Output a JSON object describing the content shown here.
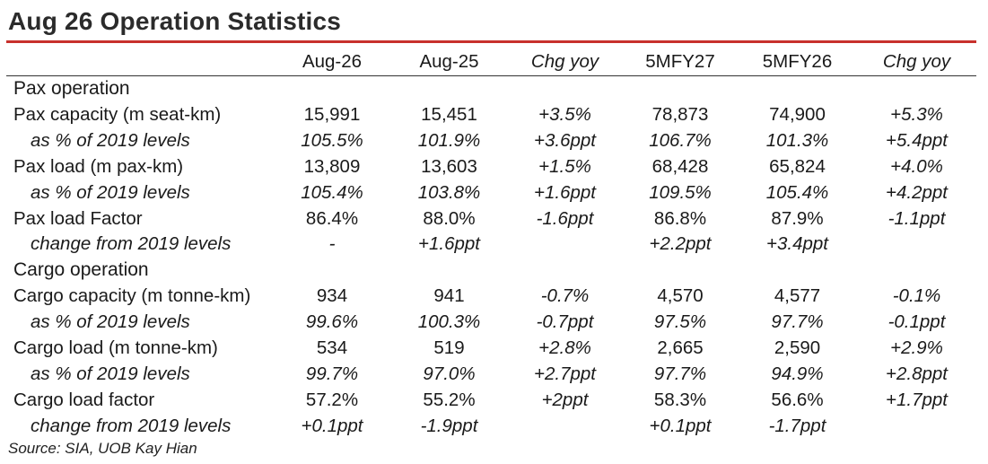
{
  "title": "Aug 26 Operation Statistics",
  "accent_color": "#c8312c",
  "headers": [
    "",
    "Aug-26",
    "Aug-25",
    "Chg yoy",
    "5MFY27",
    "5MFY26",
    "Chg yoy"
  ],
  "sections": [
    {
      "heading": "Pax operation",
      "rows": [
        {
          "label": "Pax capacity (m seat-km)",
          "values": [
            "15,991",
            "15,451",
            "+3.5%",
            "78,873",
            "74,900",
            "+5.3%"
          ]
        },
        {
          "label": "as % of 2019 levels",
          "values": [
            "105.5%",
            "101.9%",
            "+3.6ppt",
            "106.7%",
            "101.3%",
            "+5.4ppt"
          ]
        },
        {
          "label": "Pax load (m pax-km)",
          "values": [
            "13,809",
            "13,603",
            "+1.5%",
            "68,428",
            "65,824",
            "+4.0%"
          ]
        },
        {
          "label": "as % of 2019 levels",
          "values": [
            "105.4%",
            "103.8%",
            "+1.6ppt",
            "109.5%",
            "105.4%",
            "+4.2ppt"
          ]
        },
        {
          "label": "Pax load Factor",
          "values": [
            "86.4%",
            "88.0%",
            "-1.6ppt",
            "86.8%",
            "87.9%",
            "-1.1ppt"
          ]
        },
        {
          "label": "change from 2019 levels",
          "values": [
            "-",
            "+1.6ppt",
            "",
            "+2.2ppt",
            "+3.4ppt",
            ""
          ]
        }
      ]
    },
    {
      "heading": "Cargo operation",
      "rows": [
        {
          "label": "Cargo capacity (m tonne-km)",
          "values": [
            "934",
            "941",
            "-0.7%",
            "4,570",
            "4,577",
            "-0.1%"
          ]
        },
        {
          "label": "as % of 2019 levels",
          "values": [
            "99.6%",
            "100.3%",
            "-0.7ppt",
            "97.5%",
            "97.7%",
            "-0.1ppt"
          ]
        },
        {
          "label": "Cargo load (m tonne-km)",
          "values": [
            "534",
            "519",
            "+2.8%",
            "2,665",
            "2,590",
            "+2.9%"
          ]
        },
        {
          "label": "as % of 2019 levels",
          "values": [
            "99.7%",
            "97.0%",
            "+2.7ppt",
            "97.7%",
            "94.9%",
            "+2.8ppt"
          ]
        },
        {
          "label": "Cargo load factor",
          "values": [
            "57.2%",
            "55.2%",
            "+2ppt",
            "58.3%",
            "56.6%",
            "+1.7ppt"
          ]
        },
        {
          "label": "change from 2019 levels",
          "values": [
            "+0.1ppt",
            "-1.9ppt",
            "",
            "+0.1ppt",
            "-1.7ppt",
            ""
          ]
        }
      ]
    }
  ],
  "source": "Source: SIA, UOB Kay Hian"
}
